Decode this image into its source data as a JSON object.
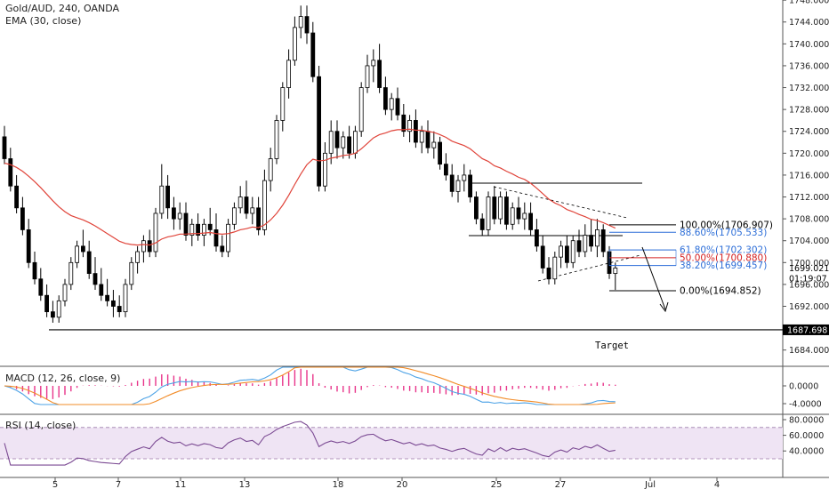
{
  "header": {
    "symbol_line": "Gold/AUD, 240, OANDA",
    "ema_line": "EMA (30, close)"
  },
  "macd_title": "MACD (12, 26, close, 9)",
  "rsi_title": "RSI (14, close)",
  "colors": {
    "up": "#ffffff",
    "down": "#000000",
    "wick": "#000000",
    "ema": "#e0443a",
    "macd": "#4ea3e6",
    "signal": "#f28c28",
    "hist": "#e8348a",
    "rsi": "#7b4a93",
    "rsi_band": "#efe4f4",
    "fib_blue": "#2e6fd8",
    "fib_red": "#d42020",
    "grid": "#e6e6e6"
  },
  "chart_data": [
    {
      "type": "candlestick",
      "title": "Gold/AUD, 240, OANDA",
      "price_axis_ticks": [
        "1748.000",
        "1744.000",
        "1740.000",
        "1736.000",
        "1732.000",
        "1728.000",
        "1724.000",
        "1720.000",
        "1716.000",
        "1712.000",
        "1708.000",
        "1704.000",
        "1700.000",
        "1696.000",
        "1692.000",
        "1688.000",
        "1684.000"
      ],
      "ylim": [
        1682.0,
        1749.0
      ],
      "x_ticks": [
        "5",
        "7",
        "11",
        "13",
        "18",
        "20",
        "25",
        "27",
        "Jul",
        "4"
      ],
      "last_price_label": "1699.021",
      "countdown_label": "01:19:07",
      "support_label": "1687.698",
      "support_level": 1687.7,
      "target_label": "Target",
      "fib_levels": [
        {
          "label": "100.00%(1706.907)",
          "value": 1706.907,
          "color": "#000000"
        },
        {
          "label": "88.60%(1705.533)",
          "value": 1705.533,
          "color": "#2e6fd8"
        },
        {
          "label": "61.80%(1702.302)",
          "value": 1702.302,
          "color": "#2e6fd8"
        },
        {
          "label": "50.00%(1700.880)",
          "value": 1700.88,
          "color": "#d42020"
        },
        {
          "label": "38.20%(1699.457)",
          "value": 1699.457,
          "color": "#2e6fd8"
        },
        {
          "label": "0.00%(1694.852)",
          "value": 1694.852,
          "color": "#000000"
        }
      ],
      "candles": [
        [
          1723.0,
          1725.0,
          1718.0,
          1719.0
        ],
        [
          1719.0,
          1721.0,
          1713.0,
          1714.0
        ],
        [
          1714.0,
          1716.0,
          1709.0,
          1710.0
        ],
        [
          1710.0,
          1712.0,
          1705.0,
          1706.0
        ],
        [
          1706.0,
          1708.0,
          1699.0,
          1700.0
        ],
        [
          1700.0,
          1702.0,
          1696.0,
          1697.0
        ],
        [
          1697.0,
          1699.0,
          1693.0,
          1694.0
        ],
        [
          1694.0,
          1696.0,
          1690.0,
          1691.0
        ],
        [
          1691.0,
          1693.0,
          1689.0,
          1690.0
        ],
        [
          1690.0,
          1694.0,
          1689.0,
          1693.0
        ],
        [
          1693.0,
          1697.0,
          1692.0,
          1696.0
        ],
        [
          1696.0,
          1701.0,
          1695.0,
          1700.0
        ],
        [
          1700.0,
          1704.0,
          1699.0,
          1703.0
        ],
        [
          1703.0,
          1706.0,
          1701.0,
          1702.0
        ],
        [
          1702.0,
          1704.0,
          1697.0,
          1698.0
        ],
        [
          1698.0,
          1701.0,
          1695.0,
          1696.0
        ],
        [
          1696.0,
          1699.0,
          1693.0,
          1694.0
        ],
        [
          1694.0,
          1697.0,
          1692.0,
          1693.0
        ],
        [
          1693.0,
          1695.0,
          1690.0,
          1692.0
        ],
        [
          1692.0,
          1694.0,
          1690.0,
          1691.0
        ],
        [
          1691.0,
          1697.0,
          1690.0,
          1696.0
        ],
        [
          1696.0,
          1701.0,
          1695.0,
          1700.0
        ],
        [
          1700.0,
          1703.0,
          1698.0,
          1702.0
        ],
        [
          1702.0,
          1705.0,
          1700.0,
          1704.0
        ],
        [
          1704.0,
          1706.0,
          1701.0,
          1702.0
        ],
        [
          1702.0,
          1710.0,
          1701.0,
          1709.0
        ],
        [
          1709.0,
          1718.0,
          1708.0,
          1714.0
        ],
        [
          1714.0,
          1716.0,
          1708.0,
          1710.0
        ],
        [
          1710.0,
          1712.0,
          1706.0,
          1708.0
        ],
        [
          1708.0,
          1711.0,
          1706.0,
          1709.0
        ],
        [
          1709.0,
          1711.0,
          1704.0,
          1705.0
        ],
        [
          1705.0,
          1708.0,
          1703.0,
          1707.0
        ],
        [
          1707.0,
          1709.0,
          1704.0,
          1705.0
        ],
        [
          1705.0,
          1708.0,
          1703.0,
          1707.0
        ],
        [
          1707.0,
          1710.0,
          1705.0,
          1706.0
        ],
        [
          1706.0,
          1709.0,
          1702.0,
          1703.0
        ],
        [
          1703.0,
          1705.0,
          1701.0,
          1702.0
        ],
        [
          1702.0,
          1708.0,
          1701.0,
          1707.0
        ],
        [
          1707.0,
          1711.0,
          1706.0,
          1710.0
        ],
        [
          1710.0,
          1714.0,
          1709.0,
          1712.0
        ],
        [
          1712.0,
          1715.0,
          1708.0,
          1709.0
        ],
        [
          1709.0,
          1712.0,
          1707.0,
          1710.0
        ],
        [
          1710.0,
          1712.0,
          1705.0,
          1706.0
        ],
        [
          1706.0,
          1717.0,
          1705.0,
          1715.0
        ],
        [
          1715.0,
          1721.0,
          1713.0,
          1719.0
        ],
        [
          1719.0,
          1727.0,
          1718.0,
          1726.0
        ],
        [
          1726.0,
          1733.0,
          1724.0,
          1732.0
        ],
        [
          1732.0,
          1739.0,
          1730.0,
          1737.0
        ],
        [
          1737.0,
          1745.0,
          1736.0,
          1743.0
        ],
        [
          1743.0,
          1747.0,
          1741.0,
          1745.0
        ],
        [
          1745.0,
          1747.0,
          1740.0,
          1742.0
        ],
        [
          1742.0,
          1744.0,
          1733.0,
          1734.0
        ],
        [
          1734.0,
          1736.0,
          1713.0,
          1714.0
        ],
        [
          1714.0,
          1722.0,
          1713.0,
          1720.0
        ],
        [
          1720.0,
          1726.0,
          1718.0,
          1724.0
        ],
        [
          1724.0,
          1726.0,
          1719.0,
          1721.0
        ],
        [
          1721.0,
          1724.0,
          1719.0,
          1723.0
        ],
        [
          1723.0,
          1725.0,
          1719.0,
          1720.0
        ],
        [
          1720.0,
          1725.0,
          1719.0,
          1724.0
        ],
        [
          1724.0,
          1733.0,
          1723.0,
          1732.0
        ],
        [
          1732.0,
          1738.0,
          1731.0,
          1736.0
        ],
        [
          1736.0,
          1739.0,
          1733.0,
          1737.0
        ],
        [
          1737.0,
          1740.0,
          1731.0,
          1732.0
        ],
        [
          1732.0,
          1734.0,
          1727.0,
          1728.0
        ],
        [
          1728.0,
          1731.0,
          1726.0,
          1730.0
        ],
        [
          1730.0,
          1732.0,
          1726.0,
          1727.0
        ],
        [
          1727.0,
          1729.0,
          1723.0,
          1724.0
        ],
        [
          1724.0,
          1727.0,
          1722.0,
          1726.0
        ],
        [
          1726.0,
          1728.0,
          1721.0,
          1722.0
        ],
        [
          1722.0,
          1725.0,
          1720.0,
          1724.0
        ],
        [
          1724.0,
          1726.0,
          1720.0,
          1721.0
        ],
        [
          1721.0,
          1724.0,
          1719.0,
          1722.0
        ],
        [
          1722.0,
          1723.0,
          1717.0,
          1718.0
        ],
        [
          1718.0,
          1720.0,
          1715.0,
          1716.0
        ],
        [
          1716.0,
          1718.0,
          1712.0,
          1713.0
        ],
        [
          1713.0,
          1716.0,
          1711.0,
          1715.0
        ],
        [
          1715.0,
          1718.0,
          1713.0,
          1716.0
        ],
        [
          1716.0,
          1717.0,
          1711.0,
          1712.0
        ],
        [
          1712.0,
          1713.0,
          1707.0,
          1708.0
        ],
        [
          1708.0,
          1709.0,
          1705.0,
          1706.0
        ],
        [
          1706.0,
          1713.0,
          1705.0,
          1712.0
        ],
        [
          1712.0,
          1714.0,
          1707.0,
          1708.0
        ],
        [
          1708.0,
          1713.0,
          1707.0,
          1712.0
        ],
        [
          1712.0,
          1713.0,
          1706.0,
          1707.0
        ],
        [
          1707.0,
          1711.0,
          1706.0,
          1710.0
        ],
        [
          1710.0,
          1712.0,
          1707.0,
          1708.0
        ],
        [
          1708.0,
          1711.0,
          1706.0,
          1709.0
        ],
        [
          1709.0,
          1711.0,
          1705.0,
          1706.0
        ],
        [
          1706.0,
          1708.0,
          1702.0,
          1703.0
        ],
        [
          1703.0,
          1705.0,
          1698.0,
          1699.0
        ],
        [
          1699.0,
          1701.0,
          1696.0,
          1697.0
        ],
        [
          1697.0,
          1702.0,
          1696.0,
          1701.0
        ],
        [
          1701.0,
          1704.0,
          1699.0,
          1703.0
        ],
        [
          1703.0,
          1705.0,
          1699.0,
          1700.0
        ],
        [
          1700.0,
          1705.0,
          1699.0,
          1704.0
        ],
        [
          1704.0,
          1706.0,
          1701.0,
          1702.0
        ],
        [
          1702.0,
          1707.0,
          1701.0,
          1705.0
        ],
        [
          1705.0,
          1708.0,
          1702.0,
          1703.0
        ],
        [
          1703.0,
          1708.0,
          1701.0,
          1706.0
        ],
        [
          1706.0,
          1707.0,
          1701.0,
          1702.0
        ],
        [
          1702.0,
          1703.0,
          1697.0,
          1698.0
        ],
        [
          1698.0,
          1700.0,
          1695.0,
          1699.0
        ]
      ],
      "ema": [
        1718.2,
        1717.9,
        1717.4,
        1716.7,
        1715.8,
        1714.8,
        1713.7,
        1712.5,
        1711.3,
        1710.2,
        1709.3,
        1708.6,
        1708.2,
        1707.8,
        1707.3,
        1706.7,
        1706.0,
        1705.3,
        1704.6,
        1703.9,
        1703.5,
        1703.3,
        1703.2,
        1703.3,
        1703.2,
        1703.6,
        1704.3,
        1704.7,
        1704.9,
        1705.2,
        1705.2,
        1705.3,
        1705.3,
        1705.4,
        1705.5,
        1705.3,
        1705.2,
        1705.3,
        1705.6,
        1706.0,
        1706.2,
        1706.5,
        1706.4,
        1706.9,
        1707.8,
        1709.0,
        1710.5,
        1712.3,
        1714.3,
        1716.2,
        1717.9,
        1718.9,
        1718.6,
        1718.7,
        1719.1,
        1719.3,
        1719.6,
        1719.7,
        1720.0,
        1720.8,
        1721.8,
        1722.8,
        1723.4,
        1723.7,
        1724.1,
        1724.3,
        1724.3,
        1724.4,
        1724.2,
        1724.2,
        1724.0,
        1723.8,
        1723.4,
        1722.9,
        1722.2,
        1721.8,
        1721.4,
        1720.8,
        1719.9,
        1719.0,
        1718.5,
        1717.7,
        1717.3,
        1716.7,
        1716.2,
        1715.6,
        1715.2,
        1714.5,
        1713.6,
        1712.6,
        1711.6,
        1710.9,
        1710.4,
        1709.7,
        1709.3,
        1708.8,
        1708.4,
        1707.9,
        1707.7,
        1707.3,
        1706.8,
        1706.3
      ],
      "macd_axis_ticks": [
        "0.0000",
        "-4.0000"
      ],
      "rsi_axis_ticks": [
        "80.0000",
        "60.0000",
        "40.0000"
      ],
      "rsi_band": [
        30,
        70
      ]
    }
  ]
}
